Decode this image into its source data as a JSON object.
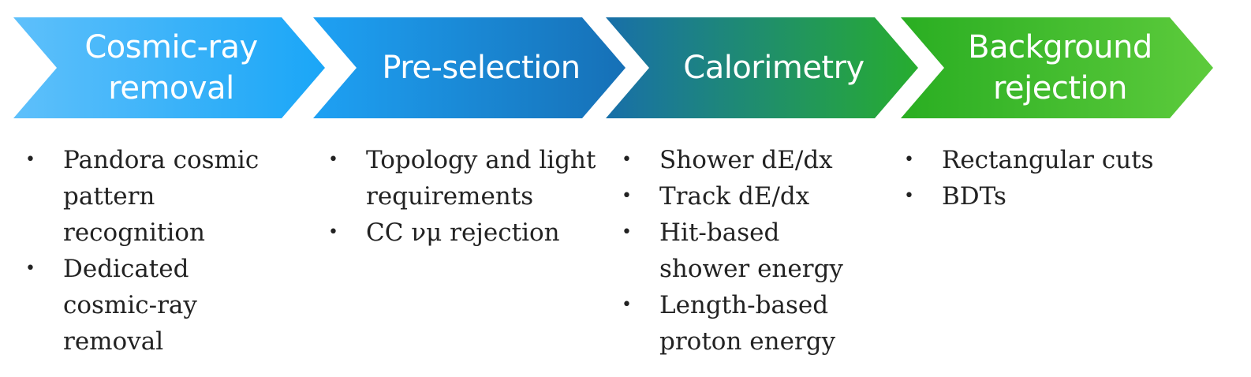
{
  "stages": [
    {
      "title_lines": [
        "Cosmic-ray",
        "removal"
      ],
      "gradient": [
        "#5ec0fb",
        "#1aa6f7"
      ],
      "bullets": [
        "Pandora cosmic pattern recognition",
        "Dedicated cosmic-ray removal"
      ]
    },
    {
      "title_lines": [
        "Pre-selection"
      ],
      "gradient": [
        "#1ea1f4",
        "#1670b6"
      ],
      "bullets": [
        "Topology and light requirements",
        "CC νμ rejection"
      ]
    },
    {
      "title_lines": [
        "Calorimetry"
      ],
      "gradient": [
        "#186fa9",
        "#27ad2f"
      ],
      "bullets": [
        "Shower dE/dx",
        "Track dE/dx",
        "Hit-based shower energy",
        "Length-based proton energy"
      ]
    },
    {
      "title_lines": [
        "Background",
        "rejection"
      ],
      "gradient": [
        "#2aae22",
        "#5dcb3c"
      ],
      "bullets": [
        "Rectangular cuts",
        "BDTs"
      ]
    }
  ],
  "bullet_symbol": "•"
}
